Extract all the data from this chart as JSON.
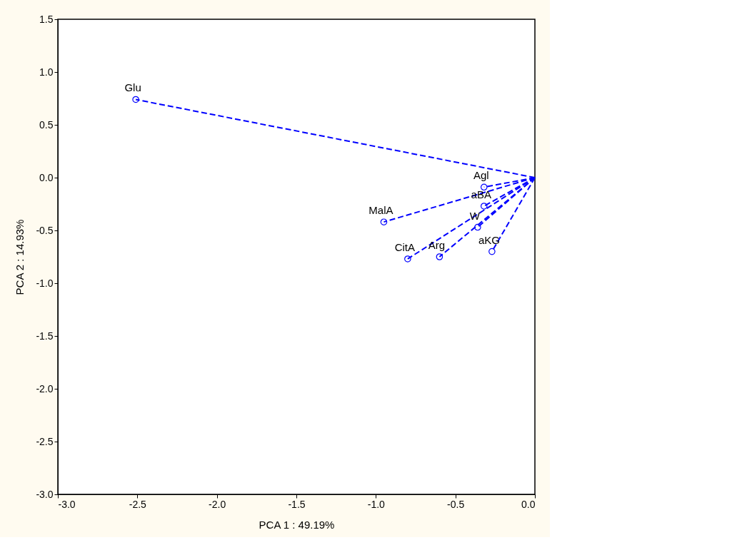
{
  "chart_data": {
    "type": "scatter",
    "xlabel": "PCA 1 : 49.19%",
    "ylabel": "PCA 2 : 14.93%",
    "xlim": [
      -3,
      0
    ],
    "ylim": [
      -3,
      1.5
    ],
    "xticks": [
      {
        "value": -3,
        "label": "-3.0"
      },
      {
        "value": -2.5,
        "label": "-2.5"
      },
      {
        "value": -2,
        "label": "-2.0"
      },
      {
        "value": -1.5,
        "label": "-1.5"
      },
      {
        "value": -1,
        "label": "-1.0"
      },
      {
        "value": -0.5,
        "label": "-0.5"
      },
      {
        "value": 0,
        "label": "0.0"
      }
    ],
    "yticks": [
      {
        "value": -3,
        "label": "-3.0"
      },
      {
        "value": -2.5,
        "label": "-2.5"
      },
      {
        "value": -2,
        "label": "-2.0"
      },
      {
        "value": -1.5,
        "label": "-1.5"
      },
      {
        "value": -1,
        "label": "-1.0"
      },
      {
        "value": -0.5,
        "label": "-0.5"
      },
      {
        "value": 0,
        "label": "0.0"
      },
      {
        "value": 0.5,
        "label": "0.5"
      },
      {
        "value": 1,
        "label": "1.0"
      },
      {
        "value": 1.5,
        "label": "1.5"
      }
    ],
    "grid": false,
    "series": [
      {
        "color": "#0000ff",
        "marker": "circle",
        "x": [
          -2.51,
          -0.32,
          -0.32,
          -0.95,
          -0.36,
          -0.8,
          -0.6,
          -0.27
        ],
        "values": [
          0.74,
          -0.09,
          -0.27,
          -0.42,
          -0.47,
          -0.77,
          -0.75,
          -0.7
        ]
      },
      {
        "type": "line",
        "color": "#0000ff",
        "line_style": "dashed",
        "x": [
          0,
          -2.51
        ],
        "values": [
          0,
          0.74
        ]
      },
      {
        "type": "line",
        "color": "#0000ff",
        "line_style": "dashed",
        "x": [
          0,
          -0.32
        ],
        "values": [
          0,
          -0.09
        ]
      },
      {
        "type": "line",
        "color": "#0000ff",
        "line_style": "dashed",
        "x": [
          0,
          -0.32
        ],
        "values": [
          0,
          -0.27
        ]
      },
      {
        "type": "line",
        "color": "#0000ff",
        "line_style": "dashed",
        "x": [
          0,
          -0.95
        ],
        "values": [
          0,
          -0.42
        ]
      },
      {
        "type": "line",
        "color": "#0000ff",
        "line_style": "dashed",
        "x": [
          0,
          -0.36
        ],
        "values": [
          0,
          -0.47
        ]
      },
      {
        "type": "line",
        "color": "#0000ff",
        "line_style": "dashed",
        "x": [
          0,
          -0.8
        ],
        "values": [
          0,
          -0.77
        ]
      },
      {
        "type": "line",
        "color": "#0000ff",
        "line_style": "dashed",
        "x": [
          0,
          -0.6
        ],
        "values": [
          0,
          -0.75
        ]
      },
      {
        "type": "line",
        "color": "#0000ff",
        "line_style": "dashed",
        "x": [
          0,
          -0.27
        ],
        "values": [
          0,
          -0.7
        ]
      }
    ],
    "annotations": [
      {
        "text": "Glu",
        "x": -2.51,
        "y": 0.74
      },
      {
        "text": "Agl",
        "x": -0.32,
        "y": -0.09
      },
      {
        "text": "aBA",
        "x": -0.32,
        "y": -0.27
      },
      {
        "text": "MalA",
        "x": -0.95,
        "y": -0.42
      },
      {
        "text": "W",
        "x": -0.36,
        "y": -0.47
      },
      {
        "text": "CitA",
        "x": -0.8,
        "y": -0.77
      },
      {
        "text": "Arg",
        "x": -0.6,
        "y": -0.75
      },
      {
        "text": "aKG",
        "x": -0.27,
        "y": -0.7
      }
    ]
  }
}
